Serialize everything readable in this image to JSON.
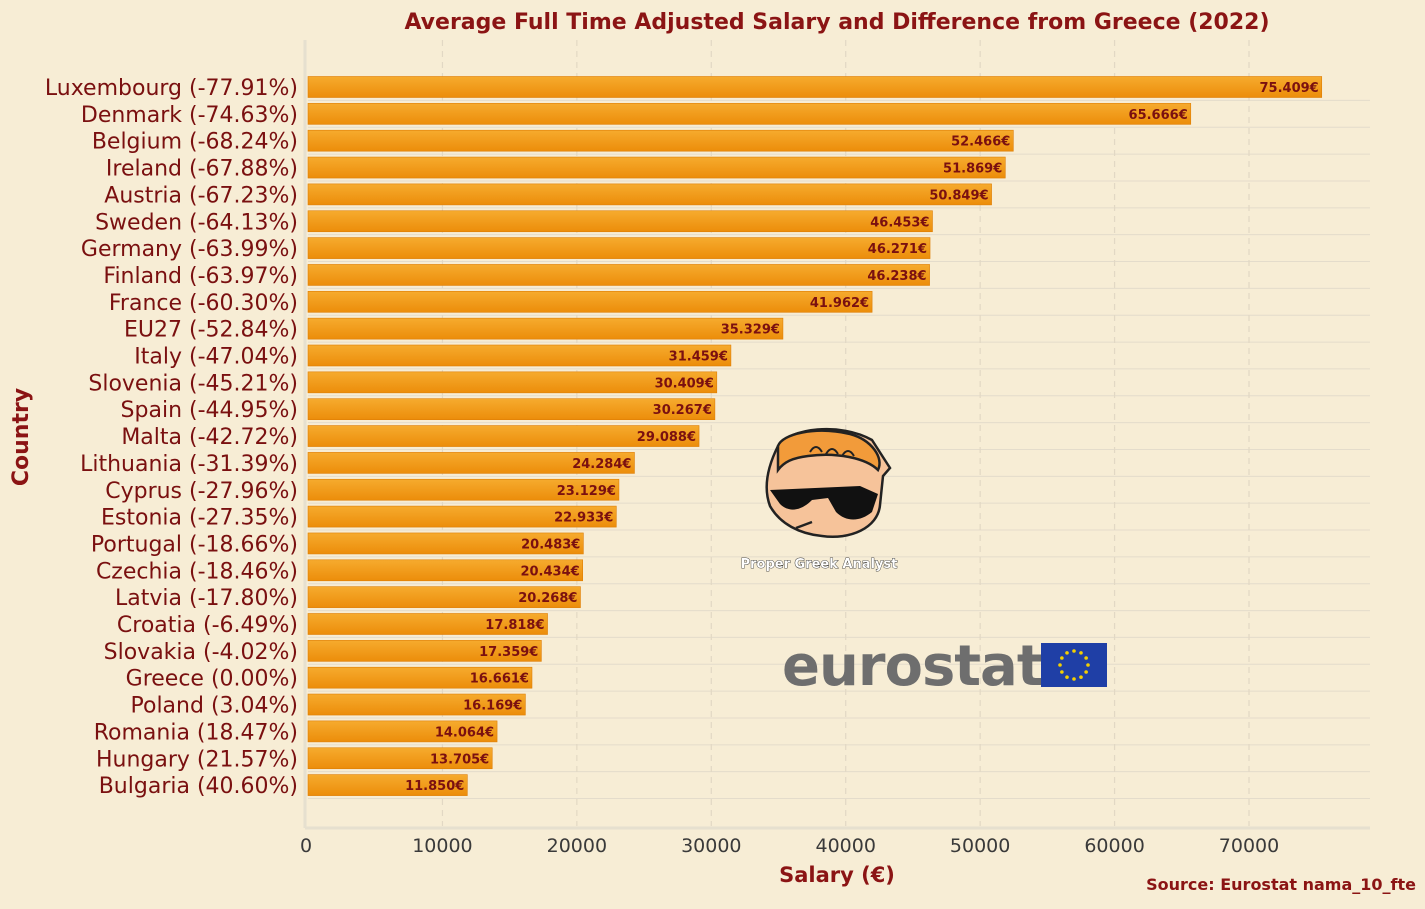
{
  "chart_data": {
    "type": "bar",
    "orientation": "horizontal",
    "title": "Average Full Time Adjusted Salary and Difference from Greece (2022)",
    "xlabel": "Salary (€)",
    "ylabel": "Country",
    "xlim": [
      0,
      79000
    ],
    "xticks": [
      0,
      10000,
      20000,
      30000,
      40000,
      50000,
      60000,
      70000
    ],
    "grid": true,
    "categories": [
      "Luxembourg (-77.91%)",
      "Denmark (-74.63%)",
      "Belgium (-68.24%)",
      "Ireland (-67.88%)",
      "Austria (-67.23%)",
      "Sweden (-64.13%)",
      "Germany (-63.99%)",
      "Finland (-63.97%)",
      "France (-60.30%)",
      "EU27 (-52.84%)",
      "Italy (-47.04%)",
      "Slovenia (-45.21%)",
      "Spain (-44.95%)",
      "Malta (-42.72%)",
      "Lithuania (-31.39%)",
      "Cyprus (-27.96%)",
      "Estonia (-27.35%)",
      "Portugal (-18.66%)",
      "Czechia (-18.46%)",
      "Latvia (-17.80%)",
      "Croatia (-6.49%)",
      "Slovakia (-4.02%)",
      "Greece (0.00%)",
      "Poland (3.04%)",
      "Romania (18.47%)",
      "Hungary (21.57%)",
      "Bulgaria (40.60%)"
    ],
    "values": [
      75409,
      65666,
      52466,
      51869,
      50849,
      46453,
      46271,
      46238,
      41962,
      35329,
      31459,
      30409,
      30267,
      29088,
      24284,
      23129,
      22933,
      20483,
      20434,
      20268,
      17818,
      17359,
      16661,
      16169,
      14064,
      13705,
      11850
    ],
    "value_labels": [
      "75.409€",
      "65.666€",
      "52.466€",
      "51.869€",
      "50.849€",
      "46.453€",
      "46.271€",
      "46.238€",
      "41.962€",
      "35.329€",
      "31.459€",
      "30.409€",
      "30.267€",
      "29.088€",
      "24.284€",
      "23.129€",
      "22.933€",
      "20.483€",
      "20.434€",
      "20.268€",
      "17.818€",
      "17.359€",
      "16.661€",
      "16.169€",
      "14.064€",
      "13.705€",
      "11.850€"
    ],
    "source": "Source: Eurostat nama_10_fte"
  },
  "overlays": {
    "mascot_caption": "Proper Greek Analyst",
    "logo_text": "eurostat"
  },
  "colors": {
    "background": "#f7edd5",
    "bar": "#f0960e",
    "bar_top": "#f6ab2e",
    "bar_edge": "#de7e05",
    "title": "#8b1414",
    "label": "#7a1010",
    "eu_blue": "#1f3fa6",
    "eu_star": "#f4d000"
  }
}
